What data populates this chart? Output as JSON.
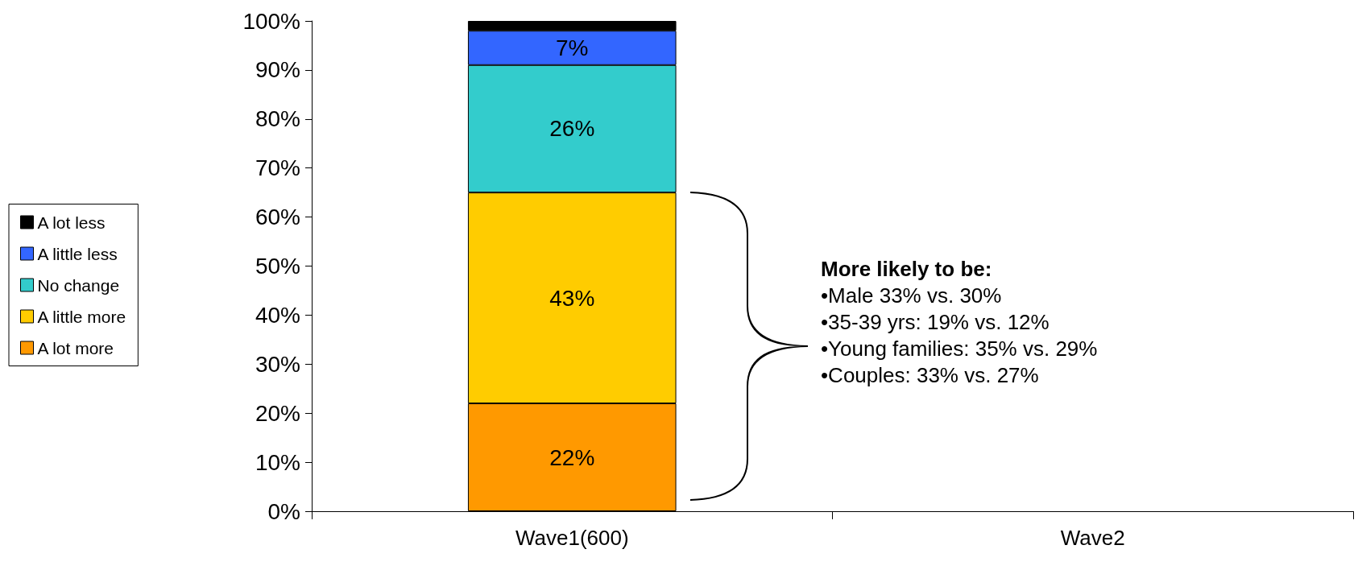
{
  "chart_data": {
    "type": "bar",
    "stacked": true,
    "categories": [
      "Wave1(600)",
      "Wave2"
    ],
    "series": [
      {
        "name": "A lot more",
        "color": "#ff9900",
        "values": [
          22,
          null
        ],
        "value_labels": [
          "22%",
          null
        ]
      },
      {
        "name": "A little more",
        "color": "#ffcc00",
        "values": [
          43,
          null
        ],
        "value_labels": [
          "43%",
          null
        ]
      },
      {
        "name": "No change",
        "color": "#33cccc",
        "values": [
          26,
          null
        ],
        "value_labels": [
          "26%",
          null
        ]
      },
      {
        "name": "A little less",
        "color": "#3366ff",
        "values": [
          7,
          null
        ],
        "value_labels": [
          "7%",
          null
        ]
      },
      {
        "name": "A lot less",
        "color": "#000000",
        "values": [
          2,
          null
        ],
        "value_labels": [
          null,
          null
        ]
      }
    ],
    "ylim": [
      0,
      100
    ],
    "yticks": [
      {
        "value": 0,
        "label": "0%"
      },
      {
        "value": 10,
        "label": "10%"
      },
      {
        "value": 20,
        "label": "20%"
      },
      {
        "value": 30,
        "label": "30%"
      },
      {
        "value": 40,
        "label": "40%"
      },
      {
        "value": 50,
        "label": "50%"
      },
      {
        "value": 60,
        "label": "60%"
      },
      {
        "value": 70,
        "label": "70%"
      },
      {
        "value": 80,
        "label": "80%"
      },
      {
        "value": 90,
        "label": "90%"
      },
      {
        "value": 100,
        "label": "100%"
      }
    ],
    "grid": false,
    "legend": "left",
    "annotations": [
      "More likely to be:",
      "•Male 33% vs. 30%",
      "•35-39 yrs: 19% vs. 12%",
      "•Young families: 35% vs. 29%",
      "•Couples: 33% vs. 27%"
    ]
  }
}
